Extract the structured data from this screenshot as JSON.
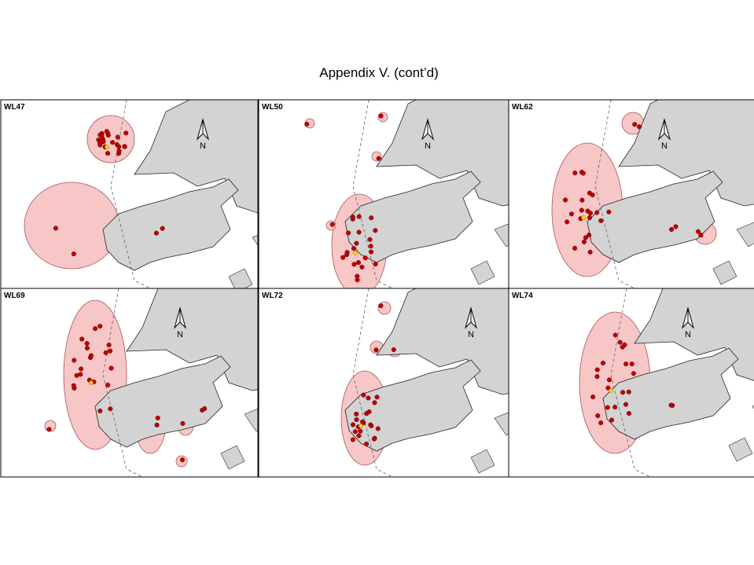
{
  "title": "Appendix V.  (cont’d)",
  "panels": [
    {
      "label": "WL47",
      "north": "N"
    },
    {
      "label": "WL50",
      "north": "N"
    },
    {
      "label": "WL62",
      "north": "N"
    },
    {
      "label": "WL69",
      "north": "N"
    },
    {
      "label": "WL72",
      "north": "N"
    },
    {
      "label": "WL74",
      "north": "N"
    }
  ]
}
